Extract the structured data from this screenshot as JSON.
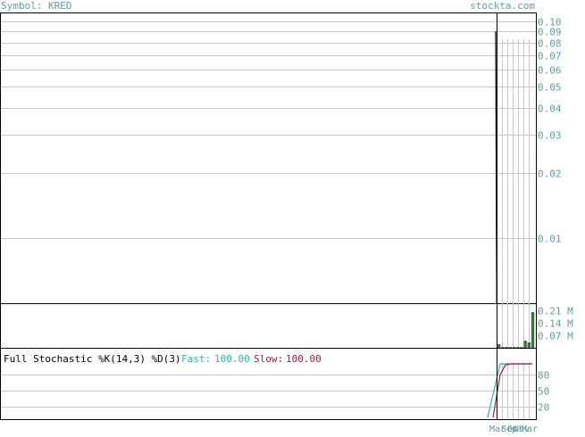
{
  "header": {
    "symbol_label": "Symbol: KRED",
    "site": "stockta.com"
  },
  "colors": {
    "price_line": "#000000",
    "volume_bar": "#2e7d32",
    "grid": "#c8c8c8",
    "label": "#5f9ea0",
    "fast": "#2ab5b5",
    "slow": "#9c1f4a"
  },
  "chart_data": [
    {
      "type": "line",
      "name": "price",
      "y_scale": "log",
      "ylim": [
        0.005,
        0.11
      ],
      "y_ticks": [
        {
          "value": 0.1,
          "label": "0.10"
        },
        {
          "value": 0.09,
          "label": "0.09"
        },
        {
          "value": 0.08,
          "label": "0.08"
        },
        {
          "value": 0.07,
          "label": "0.07"
        },
        {
          "value": 0.06,
          "label": "0.06"
        },
        {
          "value": 0.05,
          "label": "0.05"
        },
        {
          "value": 0.04,
          "label": "0.04"
        },
        {
          "value": 0.03,
          "label": "0.03"
        },
        {
          "value": 0.02,
          "label": "0.02"
        },
        {
          "value": 0.01,
          "label": "0.01"
        }
      ],
      "series": [
        {
          "values": [
            0.09,
            0.02,
            0.005
          ]
        }
      ]
    },
    {
      "type": "bar",
      "name": "volume",
      "y_ticks": [
        {
          "value": 0.21,
          "label": "0.21 M"
        },
        {
          "value": 0.14,
          "label": "0.14 M"
        },
        {
          "value": 0.07,
          "label": "0.07 M"
        }
      ],
      "ylim": [
        0,
        0.25
      ],
      "values": [
        0.02,
        0.0,
        0.0,
        0.0,
        0.0,
        0.0,
        0.0,
        0.04,
        0.03,
        0.2
      ]
    },
    {
      "type": "line",
      "name": "stochastic",
      "title": "Full Stochastic %K(14,3) %D(3)",
      "fast_label": "Fast:",
      "fast_value": "100.00",
      "slow_label": "Slow:",
      "slow_value": "100.00",
      "ylim": [
        0,
        100
      ],
      "y_ticks": [
        {
          "value": 80,
          "label": "80"
        },
        {
          "value": 50,
          "label": "50"
        },
        {
          "value": 20,
          "label": "20"
        }
      ],
      "fast": [
        0,
        100,
        100,
        100,
        100,
        100,
        100,
        100
      ],
      "slow": [
        0,
        80,
        98,
        100,
        100,
        100,
        100,
        100
      ]
    }
  ],
  "x_axis": {
    "labels": [
      "Mar",
      "Sep",
      "Oct",
      "Nov",
      "Mar"
    ]
  }
}
